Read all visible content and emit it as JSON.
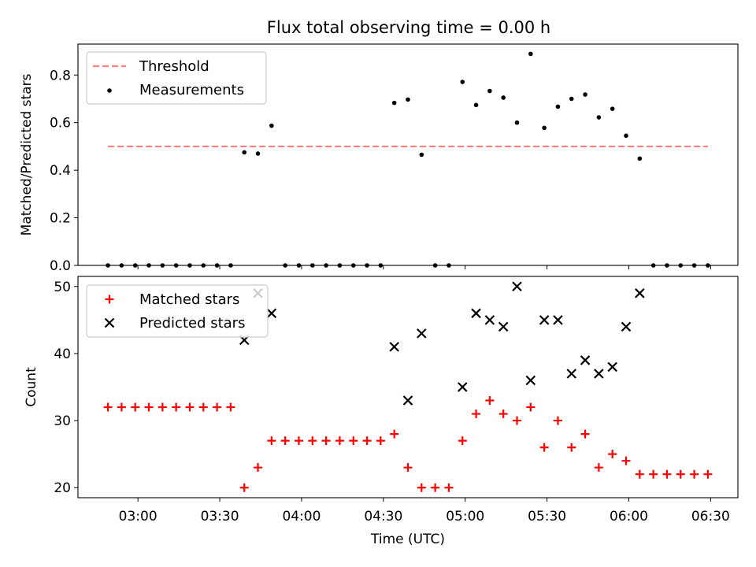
{
  "title": "Flux total observing time = 0.00 h",
  "chart_data": [
    {
      "type": "scatter",
      "ylabel": "Matched/Predicted stars",
      "xlabel": "",
      "ylim": [
        0.0,
        0.93
      ],
      "yticks": [
        "0.0",
        "0.2",
        "0.4",
        "0.6",
        "0.8"
      ],
      "ytick_values": [
        0.0,
        0.2,
        0.4,
        0.6,
        0.8
      ],
      "legend_position": "upper left",
      "threshold": {
        "name": "Threshold",
        "y": 0.5,
        "x_start": "02:49",
        "x_end": "06:29",
        "color": "#ff7f7f",
        "style": "dashed"
      },
      "series": [
        {
          "name": "Measurements",
          "color": "#000000",
          "marker": "dot",
          "x": [
            "02:49",
            "02:54",
            "02:59",
            "03:04",
            "03:09",
            "03:14",
            "03:19",
            "03:24",
            "03:29",
            "03:34",
            "03:39",
            "03:44",
            "03:49",
            "03:54",
            "03:59",
            "04:04",
            "04:09",
            "04:14",
            "04:19",
            "04:24",
            "04:29",
            "04:34",
            "04:39",
            "04:44",
            "04:49",
            "04:54",
            "04:59",
            "05:04",
            "05:09",
            "05:14",
            "05:19",
            "05:24",
            "05:29",
            "05:34",
            "05:39",
            "05:44",
            "05:49",
            "05:54",
            "05:59",
            "06:04",
            "06:09",
            "06:14",
            "06:19",
            "06:24",
            "06:29"
          ],
          "y": [
            0,
            0,
            0,
            0,
            0,
            0,
            0,
            0,
            0,
            0,
            0.475,
            0.47,
            0.587,
            0,
            0,
            0,
            0,
            0,
            0,
            0,
            0,
            0.683,
            0.697,
            0.465,
            0,
            0,
            0.771,
            0.674,
            0.733,
            0.705,
            0.6,
            0.889,
            0.578,
            0.667,
            0.7,
            0.718,
            0.622,
            0.658,
            0.545,
            0.449,
            0,
            0,
            0,
            0,
            0
          ]
        }
      ]
    },
    {
      "type": "scatter",
      "ylabel": "Count",
      "xlabel": "Time (UTC)",
      "ylim": [
        18.5,
        51.5
      ],
      "yticks": [
        "20",
        "30",
        "40",
        "50"
      ],
      "ytick_values": [
        20,
        30,
        40,
        50
      ],
      "xlim": [
        "02:38",
        "06:40"
      ],
      "xticks": [
        "03:00",
        "03:30",
        "04:00",
        "04:30",
        "05:00",
        "05:30",
        "06:00",
        "06:30"
      ],
      "legend_position": "upper left",
      "series": [
        {
          "name": "Matched stars",
          "color": "#ff0000",
          "marker": "plus",
          "x": [
            "02:49",
            "02:54",
            "02:59",
            "03:04",
            "03:09",
            "03:14",
            "03:19",
            "03:24",
            "03:29",
            "03:34",
            "03:39",
            "03:44",
            "03:49",
            "03:54",
            "03:59",
            "04:04",
            "04:09",
            "04:14",
            "04:19",
            "04:24",
            "04:29",
            "04:34",
            "04:39",
            "04:44",
            "04:49",
            "04:54",
            "04:59",
            "05:04",
            "05:09",
            "05:14",
            "05:19",
            "05:24",
            "05:29",
            "05:34",
            "05:39",
            "05:44",
            "05:49",
            "05:54",
            "05:59",
            "06:04",
            "06:09",
            "06:14",
            "06:19",
            "06:24",
            "06:29"
          ],
          "y": [
            32,
            32,
            32,
            32,
            32,
            32,
            32,
            32,
            32,
            32,
            20,
            23,
            27,
            27,
            27,
            27,
            27,
            27,
            27,
            27,
            27,
            28,
            23,
            20,
            20,
            20,
            27,
            31,
            33,
            31,
            30,
            32,
            26,
            30,
            26,
            28,
            23,
            25,
            24,
            22,
            22,
            22,
            22,
            22,
            22
          ]
        },
        {
          "name": "Predicted stars",
          "color": "#000000",
          "marker": "x",
          "x": [
            "03:39",
            "03:44",
            "03:49",
            "04:34",
            "04:39",
            "04:44",
            "04:59",
            "05:04",
            "05:09",
            "05:14",
            "05:19",
            "05:24",
            "05:29",
            "05:34",
            "05:39",
            "05:44",
            "05:49",
            "05:54",
            "05:59",
            "06:04"
          ],
          "y": [
            42,
            49,
            46,
            41,
            33,
            43,
            35,
            46,
            45,
            44,
            50,
            36,
            45,
            45,
            37,
            39,
            37,
            38,
            44,
            49
          ]
        }
      ]
    }
  ]
}
